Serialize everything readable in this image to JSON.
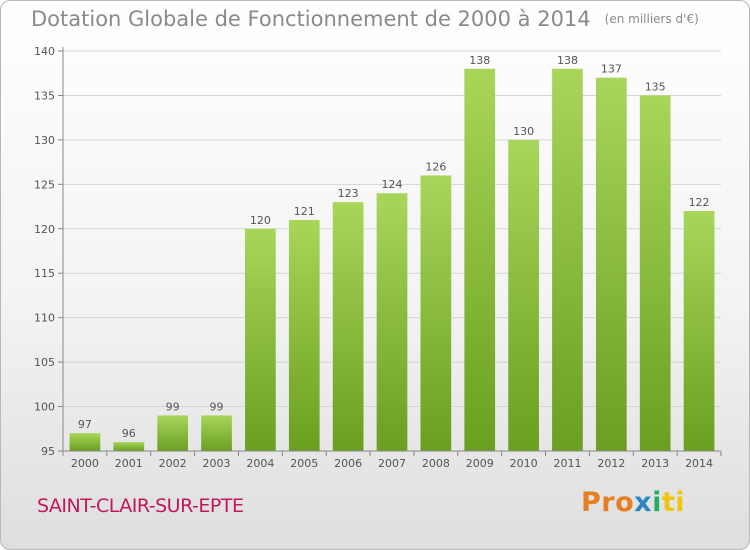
{
  "title": "Dotation Globale de Fonctionnement de 2000 à 2014",
  "unit_note": "(en milliers d'€)",
  "place_name": "SAINT-CLAIR-SUR-EPTE",
  "brand": {
    "part1": "Pro",
    "part2": "x",
    "part3": "i",
    "part4": "ti"
  },
  "colors": {
    "bar_top": "#a8d65a",
    "bar_bottom": "#6a9f1f",
    "grid": "#d5d5d5",
    "axis": "#888888",
    "text": "#555555"
  },
  "chart_data": {
    "type": "bar",
    "categories": [
      "2000",
      "2001",
      "2002",
      "2003",
      "2004",
      "2005",
      "2006",
      "2007",
      "2008",
      "2009",
      "2010",
      "2011",
      "2012",
      "2013",
      "2014"
    ],
    "values": [
      97,
      96,
      99,
      99,
      120,
      121,
      123,
      124,
      126,
      138,
      130,
      138,
      137,
      135,
      122
    ],
    "ylim": [
      95,
      140
    ],
    "yticks": [
      95,
      100,
      105,
      110,
      115,
      120,
      125,
      130,
      135,
      140
    ],
    "grid": true
  }
}
